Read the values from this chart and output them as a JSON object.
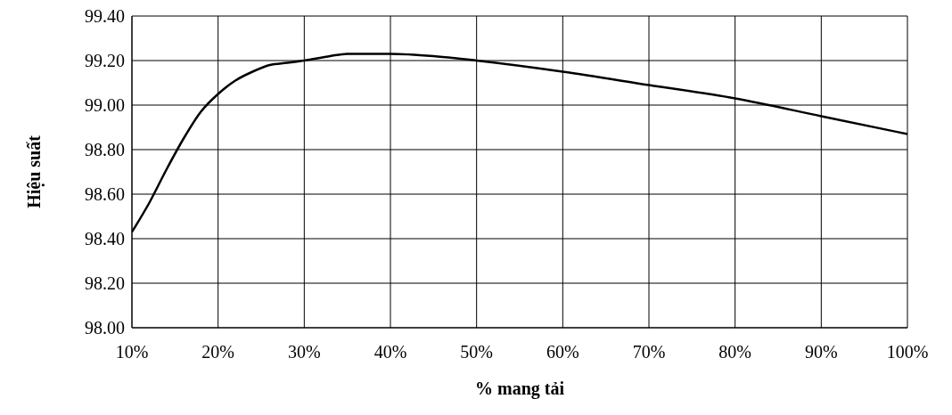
{
  "chart_data": {
    "type": "line",
    "xlabel": "% mang tải",
    "ylabel": "Hiệu suất",
    "x": [
      10,
      12,
      14,
      16,
      18,
      20,
      22,
      24,
      26,
      28,
      30,
      33,
      35,
      40,
      45,
      50,
      60,
      70,
      80,
      90,
      100
    ],
    "series": [
      {
        "color": "#000000",
        "values": [
          98.43,
          98.56,
          98.71,
          98.85,
          98.97,
          99.05,
          99.11,
          99.15,
          99.18,
          99.19,
          99.2,
          99.22,
          99.23,
          99.23,
          99.22,
          99.2,
          99.15,
          99.09,
          99.03,
          98.95,
          98.87
        ]
      }
    ],
    "xlim": [
      10,
      100
    ],
    "xticks": [
      {
        "value": 10,
        "label": "10%"
      },
      {
        "value": 20,
        "label": "20%"
      },
      {
        "value": 30,
        "label": "30%"
      },
      {
        "value": 40,
        "label": "40%"
      },
      {
        "value": 50,
        "label": "50%"
      },
      {
        "value": 60,
        "label": "60%"
      },
      {
        "value": 70,
        "label": "70%"
      },
      {
        "value": 80,
        "label": "80%"
      },
      {
        "value": 90,
        "label": "90%"
      },
      {
        "value": 100,
        "label": "100%"
      }
    ],
    "ylim": [
      98,
      99.4
    ],
    "yticks": [
      {
        "value": 98,
        "label": "98.00"
      },
      {
        "value": 98.2,
        "label": "98.20"
      },
      {
        "value": 98.4,
        "label": "98.40"
      },
      {
        "value": 98.6,
        "label": "98.60"
      },
      {
        "value": 98.8,
        "label": "98.80"
      },
      {
        "value": 99,
        "label": "99.00"
      },
      {
        "value": 99.2,
        "label": "99.20"
      },
      {
        "value": 99.4,
        "label": "99.40"
      }
    ],
    "grid": true,
    "marker": "none",
    "line_style": "solid"
  }
}
